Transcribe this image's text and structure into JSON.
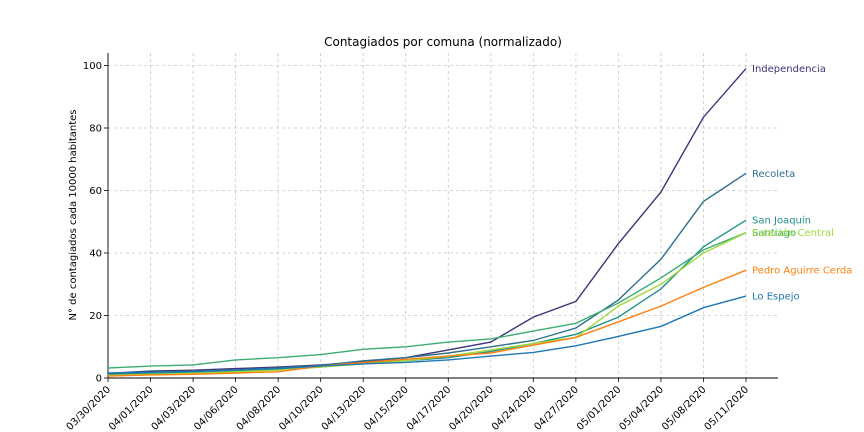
{
  "chart_data": {
    "type": "line",
    "title": "Contagiados por comuna (normalizado)",
    "xlabel": "",
    "ylabel": "N° de contagiados cada 10000 habitantes",
    "categories": [
      "03/30/2020",
      "04/01/2020",
      "04/03/2020",
      "04/06/2020",
      "04/08/2020",
      "04/10/2020",
      "04/13/2020",
      "04/15/2020",
      "04/17/2020",
      "04/20/2020",
      "04/24/2020",
      "04/27/2020",
      "05/01/2020",
      "05/04/2020",
      "05/08/2020",
      "05/11/2020"
    ],
    "ylim": [
      0,
      104
    ],
    "yticks": [
      0,
      20,
      40,
      60,
      80,
      100
    ],
    "grid": true,
    "legend": "inline-right",
    "series": [
      {
        "name": "Independencia",
        "color": "#3b3679",
        "values": [
          1.5,
          2.2,
          2.5,
          3.0,
          3.5,
          4.2,
          5.2,
          6.5,
          9.0,
          11.5,
          19.5,
          24.5,
          43.0,
          59.5,
          83.5,
          99.0
        ]
      },
      {
        "name": "Recoleta",
        "color": "#2f6f8f",
        "values": [
          1.2,
          1.8,
          2.0,
          2.6,
          3.2,
          4.0,
          5.5,
          6.5,
          8.0,
          10.0,
          12.0,
          16.0,
          25.0,
          38.0,
          56.5,
          65.5
        ]
      },
      {
        "name": "San Joaquín",
        "color": "#21918c",
        "values": [
          1.0,
          1.5,
          1.8,
          2.3,
          2.8,
          3.5,
          4.8,
          5.5,
          6.5,
          8.5,
          11.0,
          14.0,
          19.5,
          28.5,
          42.0,
          50.5
        ]
      },
      {
        "name": "Santiago",
        "color": "#3dae73",
        "values": [
          3.2,
          3.8,
          4.2,
          5.8,
          6.5,
          7.5,
          9.2,
          10.0,
          11.5,
          12.5,
          15.0,
          17.5,
          24.0,
          32.0,
          41.0,
          46.5
        ]
      },
      {
        "name": "Estación Central",
        "color": "#a0da39",
        "values": [
          0.8,
          1.2,
          1.5,
          2.0,
          2.5,
          3.5,
          4.5,
          5.5,
          7.0,
          9.0,
          11.0,
          13.0,
          23.0,
          30.0,
          40.0,
          46.5
        ]
      },
      {
        "name": "Pedro Aguirre Cerda",
        "color": "#ff7f0e",
        "values": [
          0.6,
          1.0,
          1.2,
          1.6,
          2.0,
          3.8,
          5.0,
          6.0,
          7.0,
          8.0,
          10.5,
          13.0,
          18.0,
          23.0,
          29.0,
          34.5
        ]
      },
      {
        "name": "Lo Espejo",
        "color": "#1f77b4",
        "values": [
          1.6,
          1.9,
          2.1,
          2.6,
          3.0,
          3.8,
          4.5,
          5.0,
          5.8,
          7.0,
          8.2,
          10.3,
          13.3,
          16.5,
          22.5,
          26.2
        ]
      }
    ]
  }
}
